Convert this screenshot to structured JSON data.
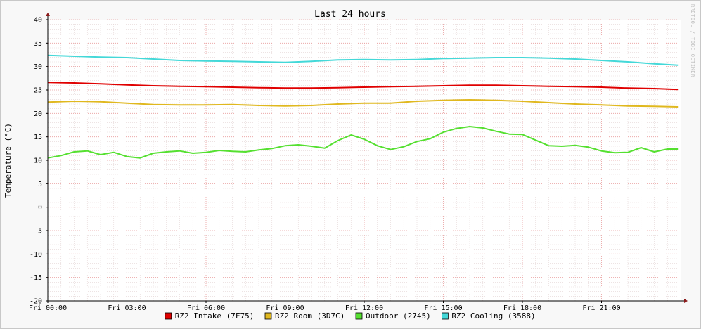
{
  "chart_data": {
    "type": "line",
    "title": "Last 24 hours",
    "ylabel": "Temperature (°C)",
    "xlabel": "",
    "watermark": "RRDTOOL / TOBI OETIKER",
    "ylim": [
      -20,
      40
    ],
    "yticks": [
      "40",
      "35",
      "30",
      "25",
      "20",
      "15",
      "10",
      "5",
      "0",
      "-5",
      "-10",
      "-15",
      "-20"
    ],
    "ytick_values": [
      40,
      35,
      30,
      25,
      20,
      15,
      10,
      5,
      0,
      -5,
      -10,
      -15,
      -20
    ],
    "xlim": [
      0,
      24
    ],
    "xticks": [
      "Fri 00:00",
      "Fri 03:00",
      "Fri 06:00",
      "Fri 09:00",
      "Fri 12:00",
      "Fri 15:00",
      "Fri 18:00",
      "Fri 21:00"
    ],
    "xtick_hours": [
      0,
      3,
      6,
      9,
      12,
      15,
      18,
      21
    ],
    "grid": true,
    "legend_position": "bottom",
    "series": [
      {
        "name": "RZ2 Intake (7F75)",
        "color": "#e00000",
        "x": [
          0,
          1,
          2,
          3,
          4,
          5,
          6,
          7,
          8,
          9,
          10,
          11,
          12,
          13,
          14,
          15,
          16,
          17,
          18,
          19,
          20,
          21,
          22,
          23,
          23.9
        ],
        "values": [
          26.6,
          26.5,
          26.3,
          26.1,
          25.9,
          25.8,
          25.7,
          25.6,
          25.5,
          25.4,
          25.4,
          25.5,
          25.6,
          25.7,
          25.8,
          25.9,
          26.0,
          26.0,
          25.9,
          25.8,
          25.7,
          25.6,
          25.4,
          25.3,
          25.1
        ]
      },
      {
        "name": "RZ2 Room (3D7C)",
        "color": "#e0b81e",
        "x": [
          0,
          1,
          2,
          3,
          4,
          5,
          6,
          7,
          8,
          9,
          10,
          11,
          12,
          13,
          14,
          15,
          16,
          17,
          18,
          19,
          20,
          21,
          22,
          23,
          23.9
        ],
        "values": [
          22.4,
          22.6,
          22.5,
          22.2,
          21.9,
          21.8,
          21.8,
          21.9,
          21.7,
          21.6,
          21.7,
          22.0,
          22.2,
          22.2,
          22.6,
          22.8,
          22.9,
          22.8,
          22.6,
          22.3,
          22.0,
          21.8,
          21.6,
          21.5,
          21.4
        ]
      },
      {
        "name": "Outdoor (2745)",
        "color": "#55e030",
        "x": [
          0,
          0.5,
          1,
          1.5,
          2,
          2.5,
          3,
          3.5,
          4,
          4.5,
          5,
          5.5,
          6,
          6.5,
          7,
          7.5,
          8,
          8.5,
          9,
          9.5,
          10,
          10.5,
          11,
          11.5,
          12,
          12.5,
          13,
          13.5,
          14,
          14.5,
          15,
          15.5,
          16,
          16.5,
          17,
          17.5,
          18,
          18.5,
          19,
          19.5,
          20,
          20.5,
          21,
          21.5,
          22,
          22.5,
          23,
          23.5,
          23.9
        ],
        "values": [
          10.5,
          11.0,
          11.8,
          12.0,
          11.2,
          11.7,
          10.8,
          10.5,
          11.5,
          11.8,
          12.0,
          11.5,
          11.7,
          12.1,
          11.9,
          11.8,
          12.2,
          12.5,
          13.1,
          13.3,
          13.0,
          12.6,
          14.2,
          15.4,
          14.5,
          13.1,
          12.3,
          12.9,
          14.0,
          14.6,
          16.0,
          16.8,
          17.2,
          16.9,
          16.2,
          15.6,
          15.5,
          14.3,
          13.1,
          13.0,
          13.2,
          12.8,
          12.0,
          11.6,
          11.7,
          12.7,
          11.8,
          12.4,
          12.4
        ]
      },
      {
        "name": "RZ2 Cooling (3588)",
        "color": "#44d8d8",
        "x": [
          0,
          1,
          2,
          3,
          4,
          5,
          6,
          7,
          8,
          9,
          10,
          11,
          12,
          13,
          14,
          15,
          16,
          17,
          18,
          19,
          20,
          21,
          22,
          23,
          23.9
        ],
        "values": [
          32.4,
          32.2,
          32.0,
          31.9,
          31.6,
          31.3,
          31.2,
          31.1,
          31.0,
          30.9,
          31.1,
          31.4,
          31.5,
          31.4,
          31.5,
          31.7,
          31.8,
          31.9,
          31.9,
          31.8,
          31.6,
          31.3,
          31.0,
          30.6,
          30.3
        ]
      }
    ]
  }
}
